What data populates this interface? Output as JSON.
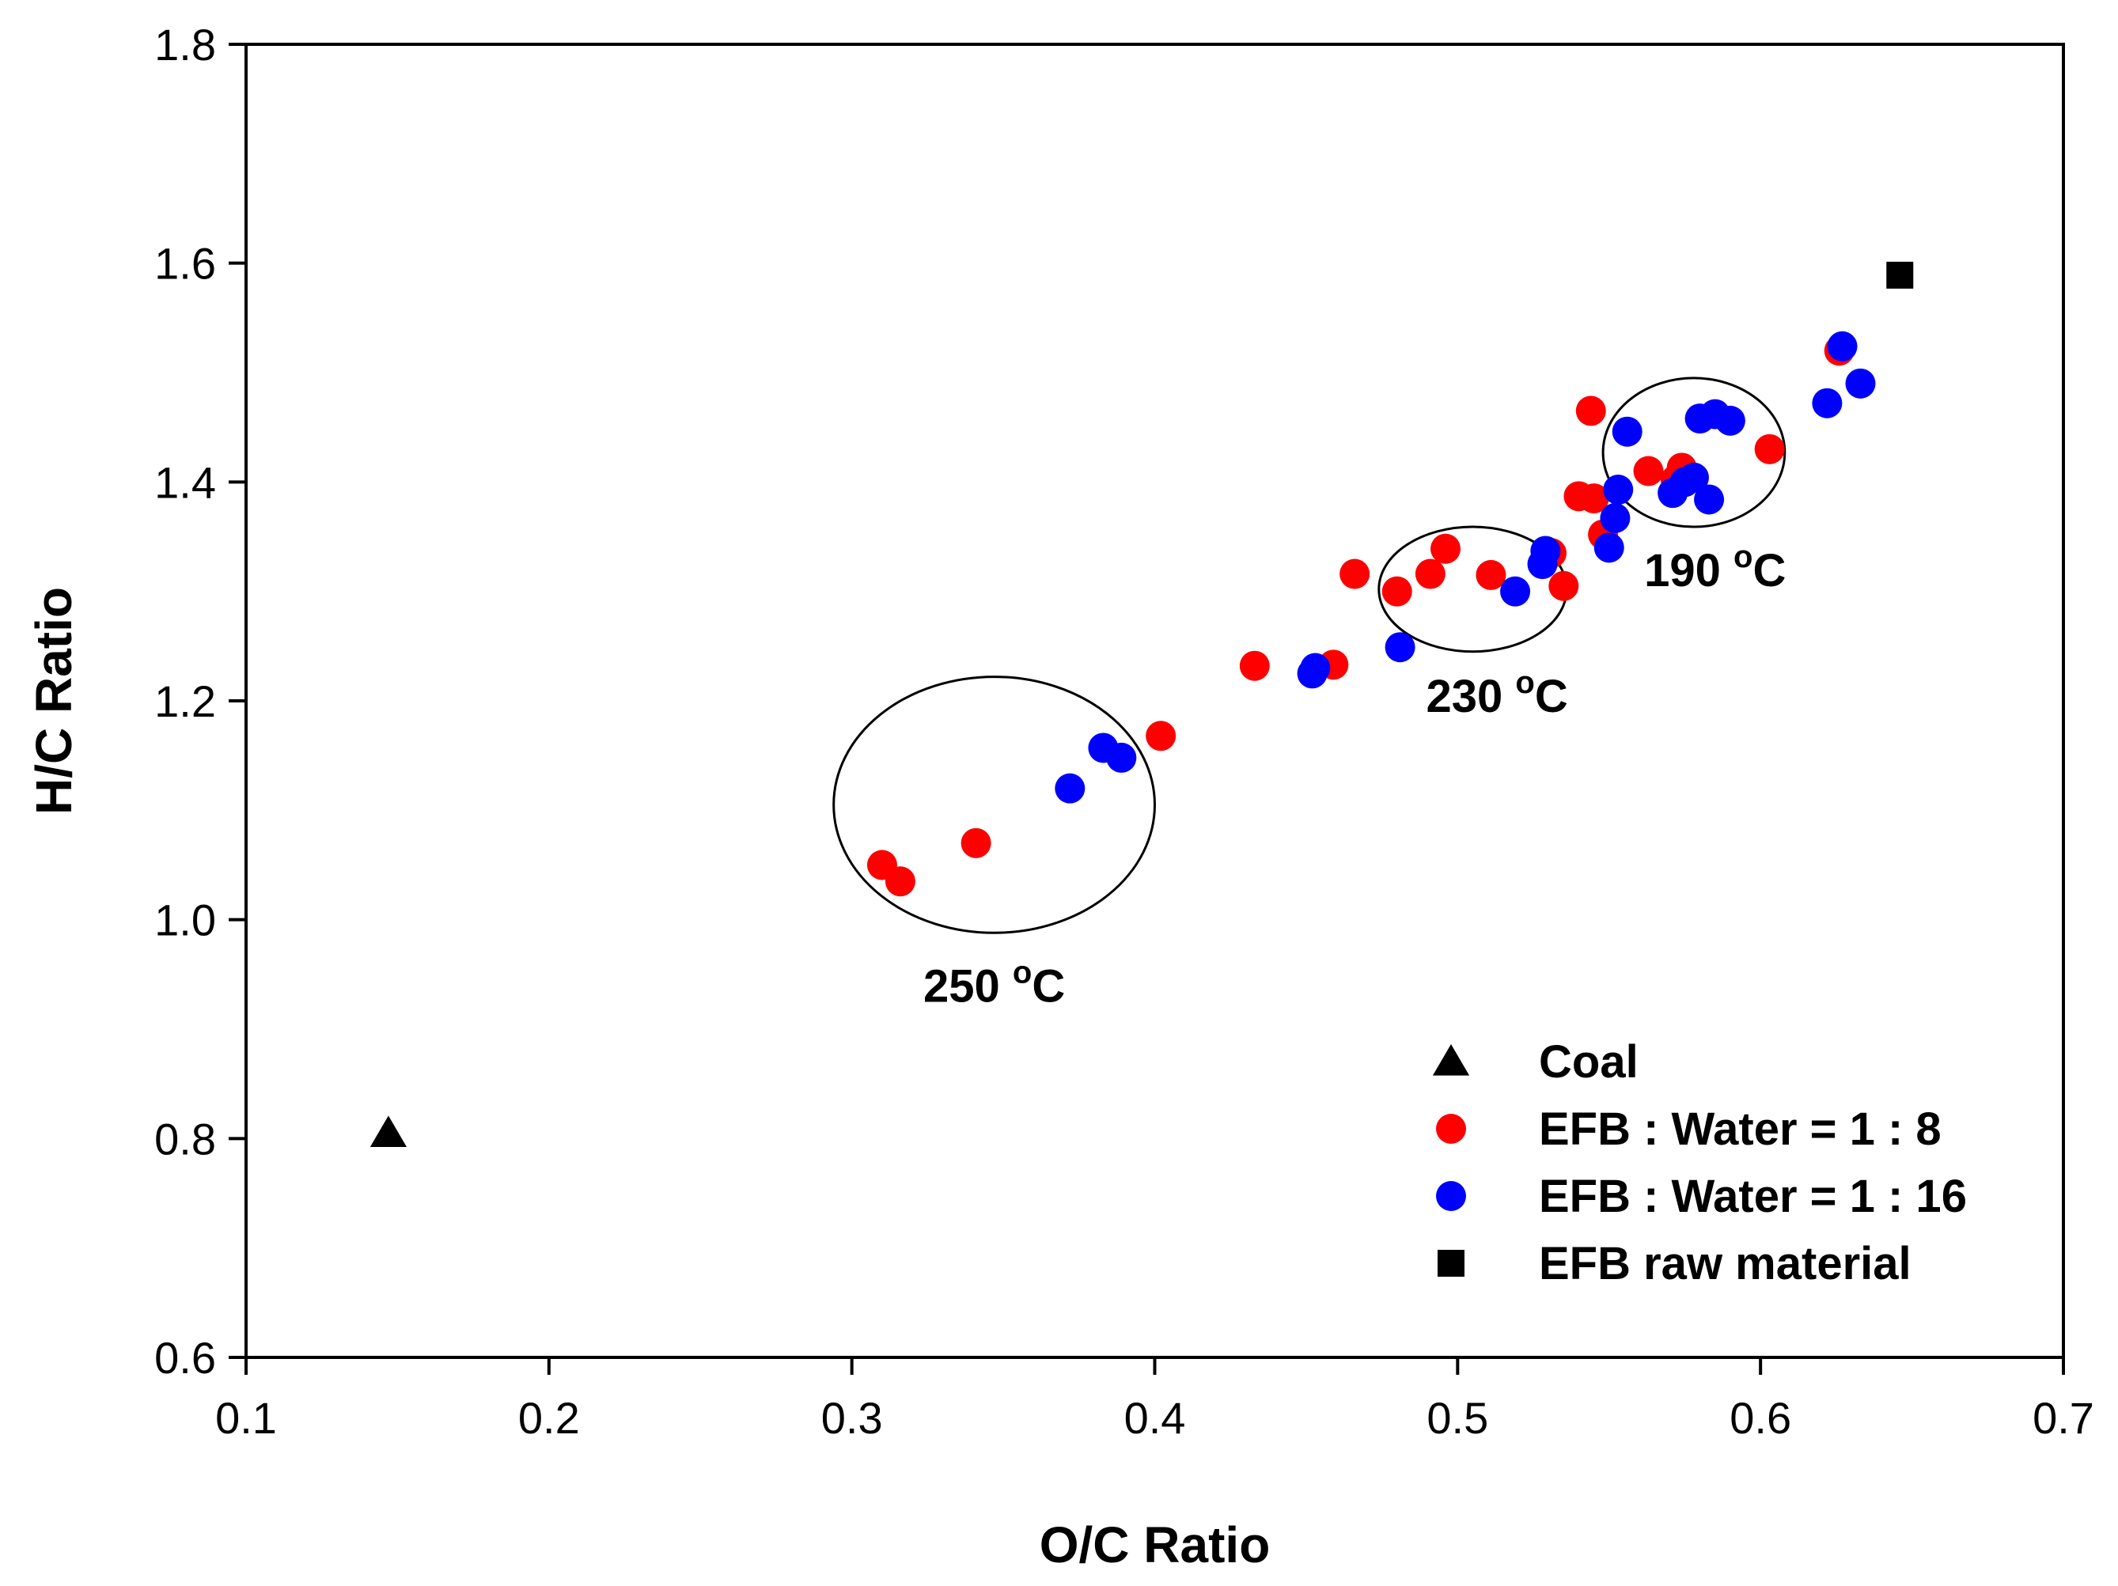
{
  "chart_data": {
    "type": "scatter",
    "xlabel": "O/C Ratio",
    "ylabel": "H/C Ratio",
    "xlim": [
      0.1,
      0.7
    ],
    "ylim": [
      0.6,
      1.8
    ],
    "xticks": [
      "0.1",
      "0.2",
      "0.3",
      "0.4",
      "0.5",
      "0.6",
      "0.7"
    ],
    "yticks": [
      "0.6",
      "0.8",
      "1.0",
      "1.2",
      "1.4",
      "1.6",
      "1.8"
    ],
    "grid": false,
    "legend_position": "bottom-right",
    "series": [
      {
        "name": "Coal",
        "marker": "triangle",
        "color": "#000000",
        "points": [
          [
            0.147,
            0.805
          ]
        ]
      },
      {
        "name": "EFB : Water = 1 : 8",
        "marker": "circle",
        "color": "#ff0000",
        "points": [
          [
            0.31,
            1.05
          ],
          [
            0.316,
            1.035
          ],
          [
            0.341,
            1.07
          ],
          [
            0.402,
            1.168
          ],
          [
            0.433,
            1.232
          ],
          [
            0.459,
            1.233
          ],
          [
            0.466,
            1.316
          ],
          [
            0.48,
            1.3
          ],
          [
            0.491,
            1.316
          ],
          [
            0.496,
            1.339
          ],
          [
            0.511,
            1.315
          ],
          [
            0.531,
            1.335
          ],
          [
            0.535,
            1.305
          ],
          [
            0.54,
            1.387
          ],
          [
            0.545,
            1.385
          ],
          [
            0.544,
            1.465
          ],
          [
            0.548,
            1.352
          ],
          [
            0.563,
            1.41
          ],
          [
            0.572,
            1.402
          ],
          [
            0.574,
            1.413
          ],
          [
            0.603,
            1.43
          ],
          [
            0.626,
            1.52
          ]
        ]
      },
      {
        "name": "EFB : Water = 1 : 16",
        "marker": "circle",
        "color": "#0000ff",
        "points": [
          [
            0.372,
            1.12
          ],
          [
            0.383,
            1.157
          ],
          [
            0.389,
            1.148
          ],
          [
            0.452,
            1.225
          ],
          [
            0.453,
            1.23
          ],
          [
            0.481,
            1.249
          ],
          [
            0.519,
            1.3
          ],
          [
            0.528,
            1.325
          ],
          [
            0.529,
            1.337
          ],
          [
            0.55,
            1.34
          ],
          [
            0.552,
            1.367
          ],
          [
            0.553,
            1.393
          ],
          [
            0.556,
            1.446
          ],
          [
            0.571,
            1.39
          ],
          [
            0.575,
            1.4
          ],
          [
            0.578,
            1.404
          ],
          [
            0.58,
            1.458
          ],
          [
            0.585,
            1.462
          ],
          [
            0.59,
            1.456
          ],
          [
            0.583,
            1.384
          ],
          [
            0.622,
            1.472
          ],
          [
            0.627,
            1.524
          ],
          [
            0.633,
            1.49
          ]
        ]
      },
      {
        "name": "EFB raw material",
        "marker": "square",
        "color": "#000000",
        "points": [
          [
            0.646,
            1.589
          ]
        ]
      }
    ],
    "annotations": [
      {
        "label": "250",
        "unit": "C",
        "sup": "o",
        "ellipse": {
          "cx": 0.347,
          "cy": 1.105,
          "rx": 0.053,
          "ry": 0.117
        },
        "text_at": [
          0.347,
          0.925
        ]
      },
      {
        "label": "230",
        "unit": "C",
        "sup": "o",
        "ellipse": {
          "cx": 0.505,
          "cy": 1.302,
          "rx": 0.031,
          "ry": 0.057
        },
        "text_at": [
          0.513,
          1.19
        ]
      },
      {
        "label": "190",
        "unit": "C",
        "sup": "o",
        "ellipse": {
          "cx": 0.578,
          "cy": 1.427,
          "rx": 0.03,
          "ry": 0.068
        },
        "text_at": [
          0.585,
          1.305
        ]
      }
    ]
  }
}
